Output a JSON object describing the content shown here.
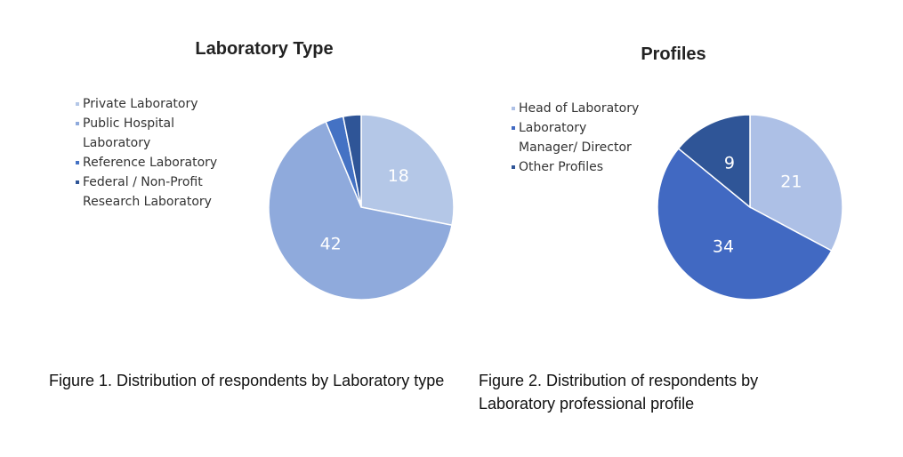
{
  "chart_data": [
    {
      "type": "pie",
      "title": "Laboratory Type",
      "categories": [
        "Private Laboratory",
        "Public Hospital Laboratory",
        "Reference Laboratory",
        "Federal / Non-Profit Research Laboratory"
      ],
      "values": [
        18,
        42,
        2,
        2
      ],
      "colors": [
        "#b4c7e7",
        "#8faadc",
        "#4472c4",
        "#2f5597"
      ],
      "caption": "Figure 1. Distribution of respondents by Laboratory type"
    },
    {
      "type": "pie",
      "title": "Profiles",
      "categories": [
        "Head of Laboratory",
        "Laboratory Manager/ Director",
        "Other Profiles"
      ],
      "values": [
        21,
        34,
        9
      ],
      "colors": [
        "#adc0e6",
        "#4169c2",
        "#2f5597"
      ],
      "caption": "Figure 2. Distribution of respondents by Laboratory professional profile"
    }
  ]
}
